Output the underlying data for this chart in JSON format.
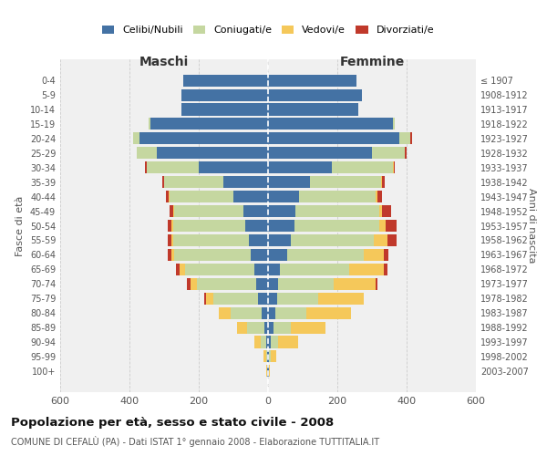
{
  "age_groups": [
    "0-4",
    "5-9",
    "10-14",
    "15-19",
    "20-24",
    "25-29",
    "30-34",
    "35-39",
    "40-44",
    "45-49",
    "50-54",
    "55-59",
    "60-64",
    "65-69",
    "70-74",
    "75-79",
    "80-84",
    "85-89",
    "90-94",
    "95-99",
    "100+"
  ],
  "birth_years": [
    "2003-2007",
    "1998-2002",
    "1993-1997",
    "1988-1992",
    "1983-1987",
    "1978-1982",
    "1973-1977",
    "1968-1972",
    "1963-1967",
    "1958-1962",
    "1953-1957",
    "1948-1952",
    "1943-1947",
    "1938-1942",
    "1933-1937",
    "1928-1932",
    "1923-1927",
    "1918-1922",
    "1913-1917",
    "1908-1912",
    "≤ 1907"
  ],
  "male_celibi": [
    245,
    250,
    250,
    340,
    370,
    320,
    200,
    130,
    100,
    70,
    65,
    55,
    50,
    40,
    35,
    28,
    18,
    10,
    5,
    3,
    2
  ],
  "male_coniugati": [
    0,
    0,
    0,
    5,
    20,
    60,
    150,
    170,
    185,
    200,
    210,
    220,
    220,
    200,
    170,
    130,
    90,
    50,
    15,
    3,
    1
  ],
  "male_vedovi": [
    0,
    0,
    0,
    0,
    0,
    0,
    1,
    1,
    2,
    3,
    5,
    5,
    10,
    15,
    20,
    20,
    35,
    30,
    20,
    8,
    1
  ],
  "male_divorziati": [
    0,
    0,
    0,
    0,
    0,
    0,
    3,
    5,
    8,
    10,
    10,
    10,
    10,
    10,
    10,
    5,
    0,
    0,
    0,
    0,
    0
  ],
  "female_celibi": [
    255,
    270,
    260,
    360,
    380,
    300,
    185,
    120,
    90,
    80,
    75,
    65,
    55,
    35,
    30,
    25,
    20,
    15,
    8,
    3,
    2
  ],
  "female_coniugati": [
    0,
    0,
    0,
    5,
    30,
    95,
    175,
    205,
    220,
    240,
    245,
    240,
    220,
    200,
    160,
    120,
    90,
    50,
    20,
    5,
    1
  ],
  "female_vedovi": [
    0,
    0,
    0,
    0,
    0,
    1,
    2,
    3,
    5,
    10,
    20,
    40,
    60,
    100,
    120,
    130,
    130,
    100,
    60,
    15,
    2
  ],
  "female_divorziati": [
    0,
    0,
    0,
    0,
    5,
    5,
    5,
    10,
    15,
    25,
    30,
    25,
    12,
    10,
    5,
    0,
    0,
    0,
    0,
    0,
    0
  ],
  "color_celibi": "#4472a4",
  "color_coniugati": "#c5d7a0",
  "color_vedovi": "#f5c85a",
  "color_divorziati": "#c0392b",
  "title": "Popolazione per età, sesso e stato civile - 2008",
  "subtitle": "COMUNE DI CEFALÙ (PA) - Dati ISTAT 1° gennaio 2008 - Elaborazione TUTTITALIA.IT",
  "xlim": 600,
  "background_color": "#ffffff",
  "grid_color": "#cccccc"
}
